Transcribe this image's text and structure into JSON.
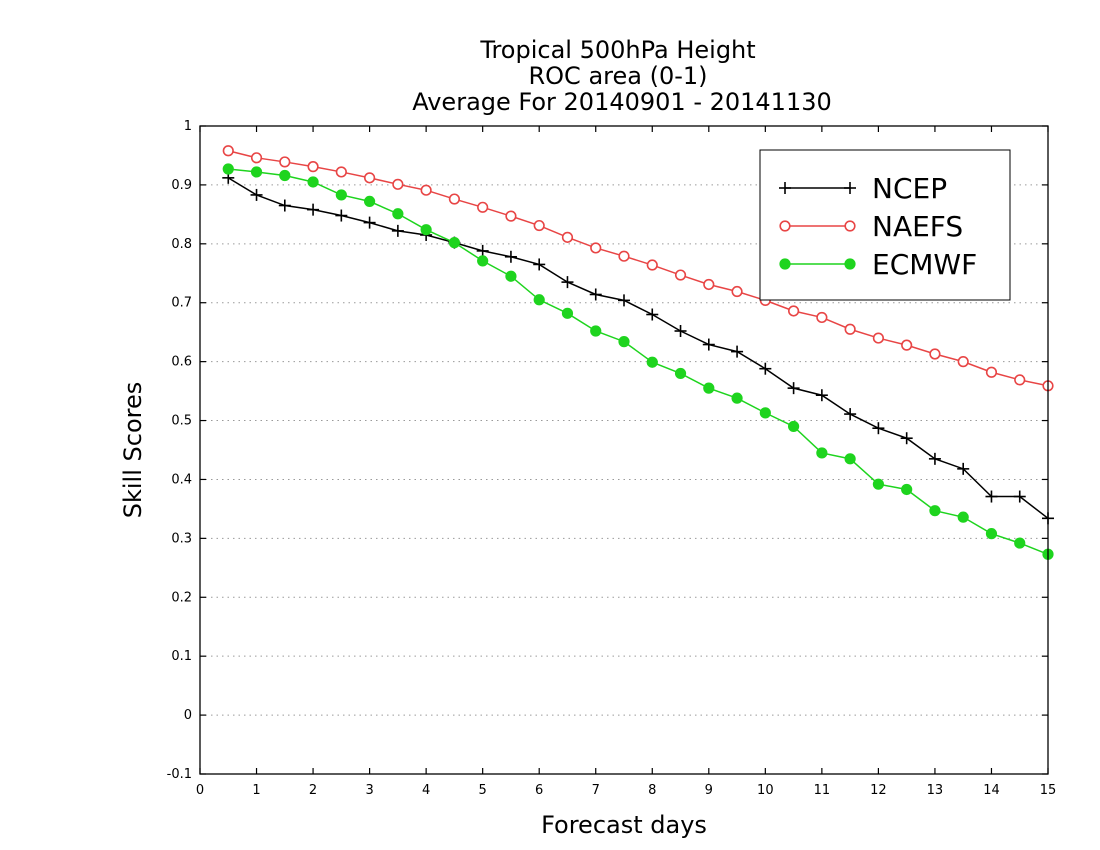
{
  "chart_data": {
    "type": "line",
    "title_lines": [
      "Tropical 500hPa Height",
      "ROC area (0-1)",
      "Average For 20140901 - 20141130"
    ],
    "xlabel": "Forecast days",
    "ylabel": "Skill Scores",
    "xlim": [
      0,
      15
    ],
    "ylim": [
      -0.1,
      1
    ],
    "x_ticks": [
      0,
      1,
      2,
      3,
      4,
      5,
      6,
      7,
      8,
      9,
      10,
      11,
      12,
      13,
      14,
      15
    ],
    "y_ticks": [
      -0.1,
      0,
      0.1,
      0.2,
      0.3,
      0.4,
      0.5,
      0.6,
      0.7,
      0.8,
      0.9,
      1
    ],
    "y_tick_labels": [
      "-0.1",
      "0",
      "0.1",
      "0.2",
      "0.3",
      "0.4",
      "0.5",
      "0.6",
      "0.7",
      "0.8",
      "0.9",
      "1"
    ],
    "grid": "horizontal dotted",
    "legend_position": "top-right",
    "x": [
      0.5,
      1.0,
      1.5,
      2.0,
      2.5,
      3.0,
      3.5,
      4.0,
      4.5,
      5.0,
      5.5,
      6.0,
      6.5,
      7.0,
      7.5,
      8.0,
      8.5,
      9.0,
      9.5,
      10.0,
      10.5,
      11.0,
      11.5,
      12.0,
      12.5,
      13.0,
      13.5,
      14.0,
      14.5,
      15.0
    ],
    "series": [
      {
        "name": "NCEP",
        "color": "#000000",
        "marker": "plus",
        "values": [
          0.912,
          0.883,
          0.865,
          0.858,
          0.848,
          0.836,
          0.822,
          0.815,
          0.802,
          0.788,
          0.778,
          0.765,
          0.735,
          0.714,
          0.704,
          0.68,
          0.652,
          0.629,
          0.617,
          0.588,
          0.555,
          0.543,
          0.511,
          0.487,
          0.47,
          0.435,
          0.418,
          0.371,
          0.371,
          0.334
        ]
      },
      {
        "name": "NAEFS",
        "color": "#e84545",
        "marker": "open-circle",
        "values": [
          0.958,
          0.946,
          0.939,
          0.931,
          0.922,
          0.912,
          0.901,
          0.891,
          0.876,
          0.862,
          0.847,
          0.831,
          0.811,
          0.793,
          0.779,
          0.764,
          0.747,
          0.731,
          0.719,
          0.704,
          0.686,
          0.675,
          0.655,
          0.64,
          0.628,
          0.613,
          0.6,
          0.582,
          0.569,
          0.559
        ]
      },
      {
        "name": "ECMWF",
        "color": "#1ed41e",
        "marker": "filled-circle",
        "values": [
          0.927,
          0.922,
          0.916,
          0.905,
          0.883,
          0.872,
          0.851,
          0.824,
          0.802,
          0.771,
          0.745,
          0.705,
          0.682,
          0.652,
          0.634,
          0.599,
          0.58,
          0.555,
          0.538,
          0.513,
          0.49,
          0.445,
          0.435,
          0.392,
          0.383,
          0.347,
          0.336,
          0.308,
          0.292,
          0.273
        ]
      }
    ]
  }
}
